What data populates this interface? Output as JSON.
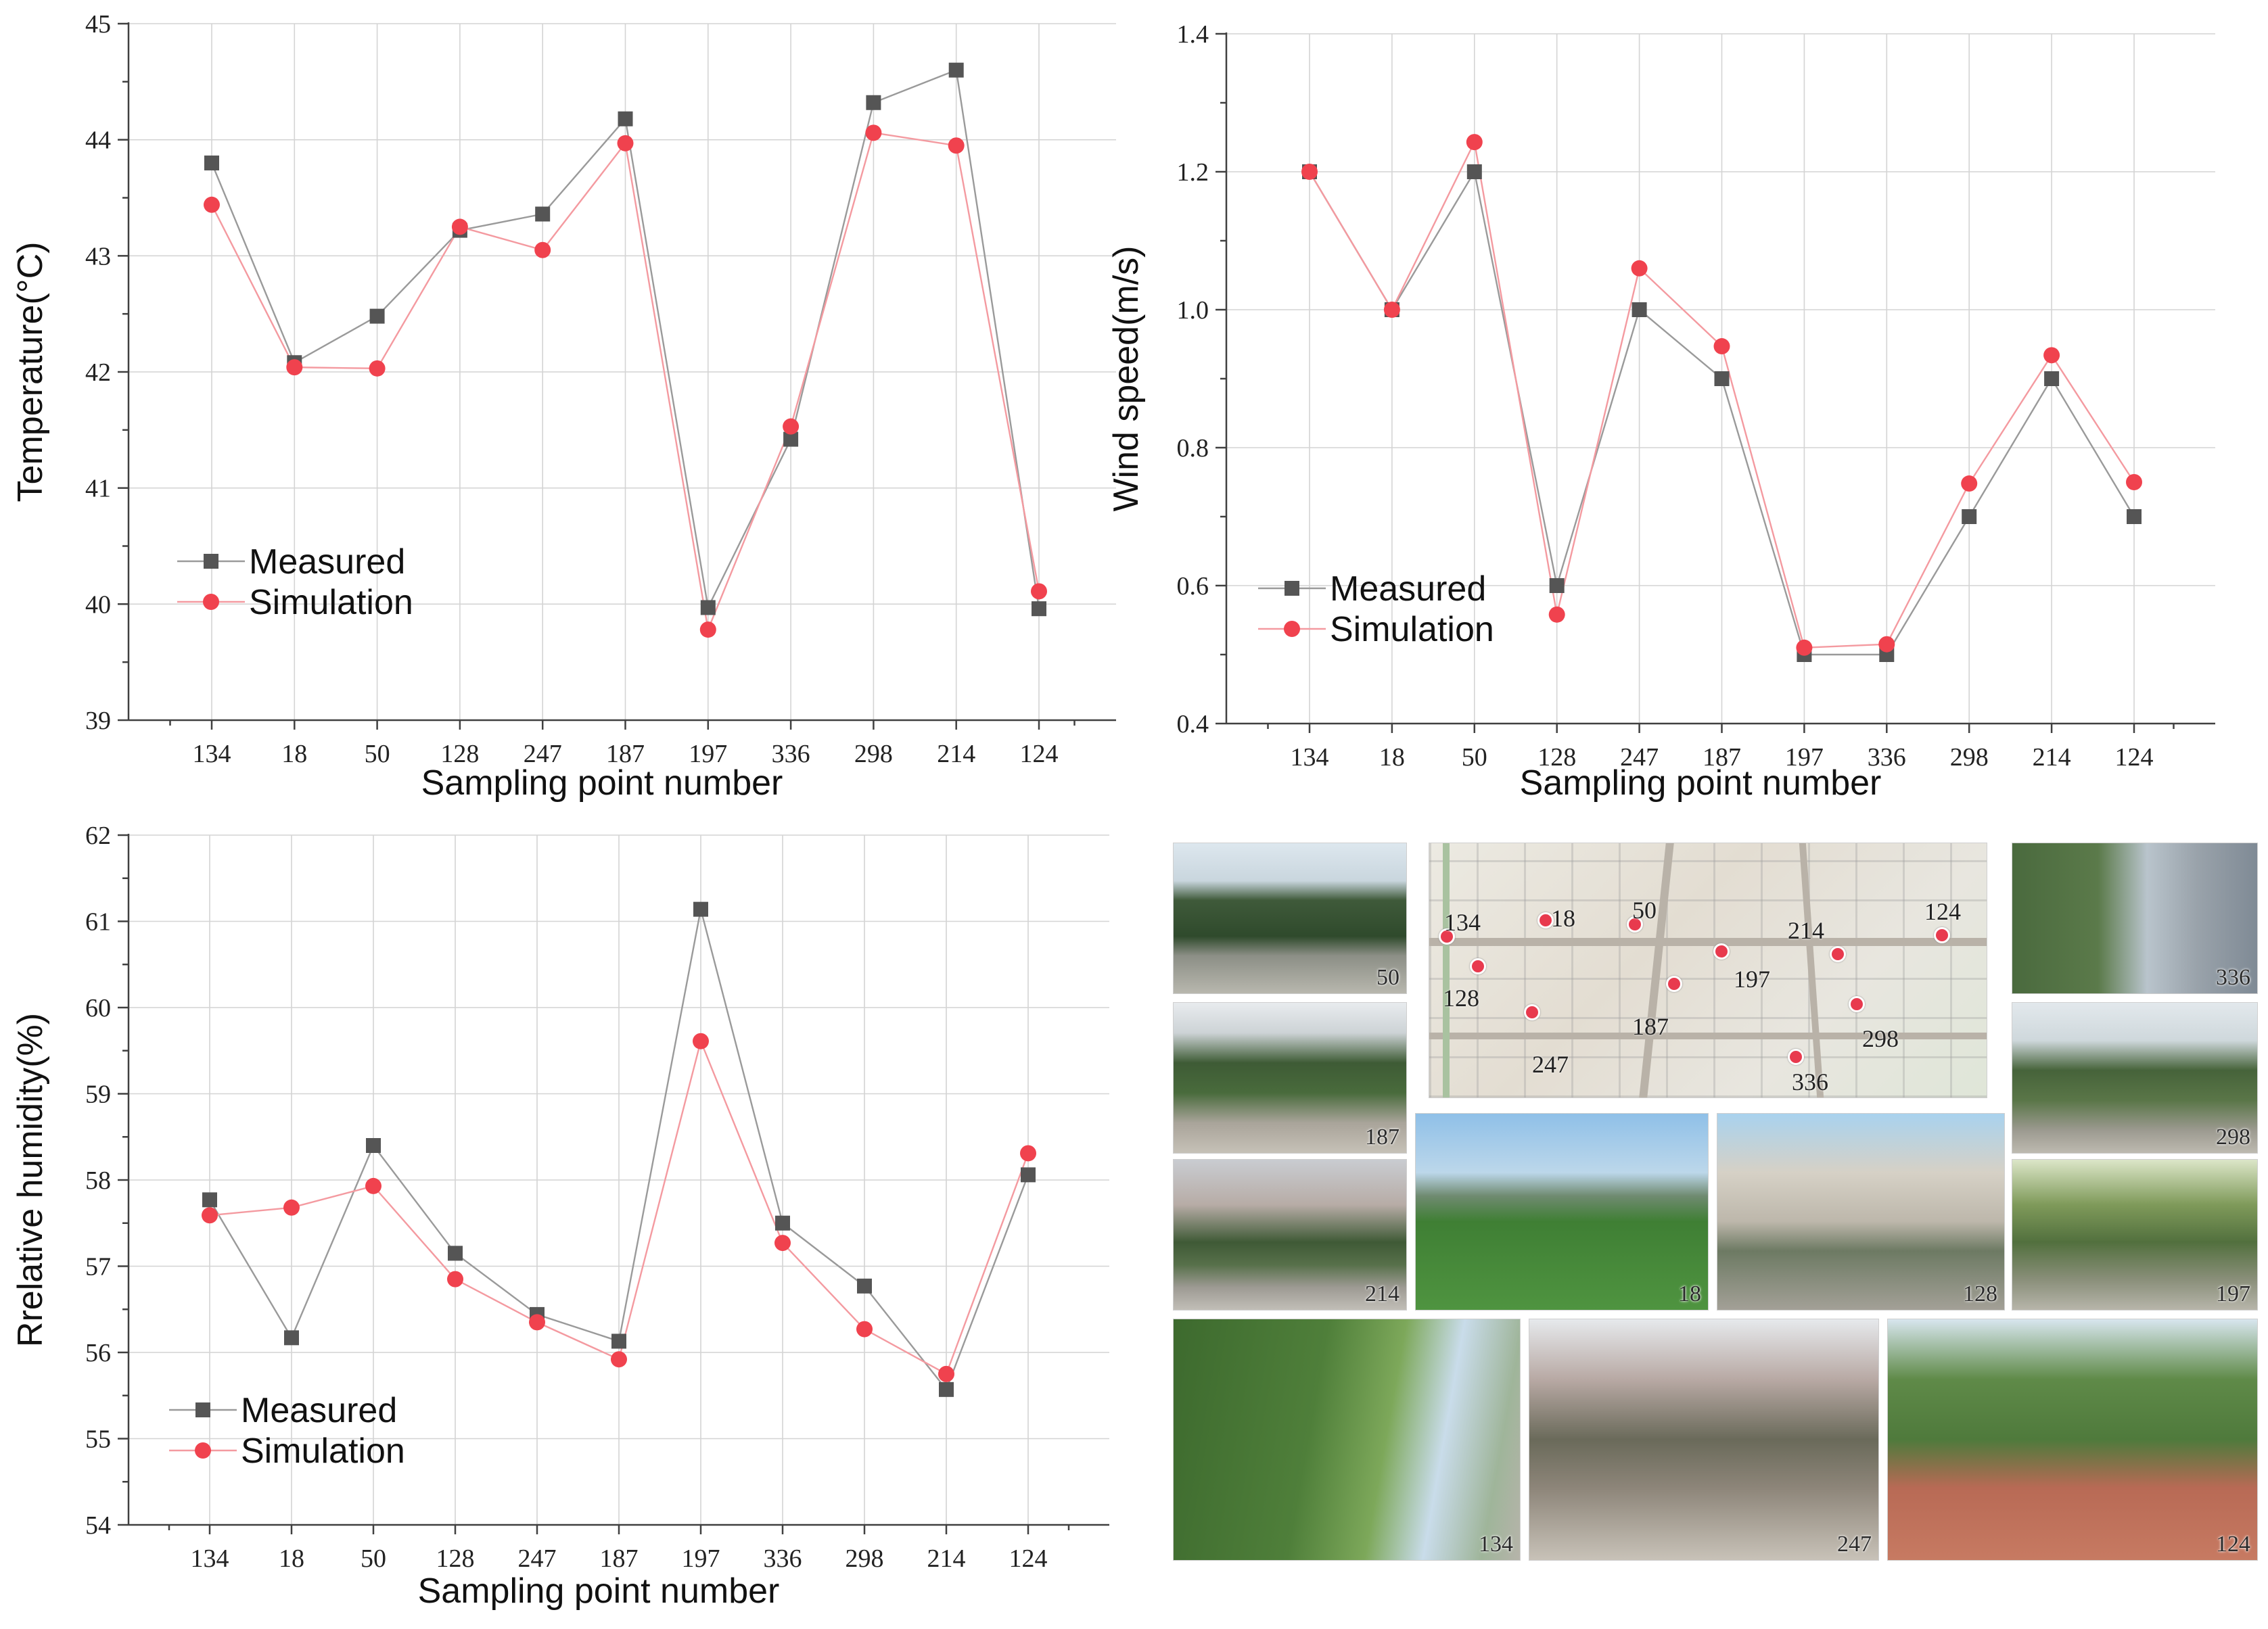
{
  "colors": {
    "measured": "#555555",
    "simulation": "#f0424e",
    "measured_line": "#9a9a9a",
    "simulation_line": "#f49aa0"
  },
  "chart_data": [
    {
      "id": "temperature",
      "type": "line",
      "categories": [
        "134",
        "18",
        "50",
        "128",
        "247",
        "187",
        "197",
        "336",
        "298",
        "214",
        "124"
      ],
      "series": [
        {
          "name": "Measured",
          "values": [
            43.8,
            42.08,
            42.48,
            43.22,
            43.36,
            44.18,
            39.97,
            41.42,
            44.32,
            44.6,
            39.96
          ]
        },
        {
          "name": "Simulation",
          "values": [
            43.44,
            42.04,
            42.03,
            43.25,
            43.05,
            43.97,
            39.78,
            41.53,
            44.06,
            43.95,
            40.11
          ]
        }
      ],
      "xlabel": "Sampling point number",
      "ylabel": "Temperature(°C)",
      "ylim": [
        39,
        45
      ],
      "yticks": [
        "39",
        "40",
        "41",
        "42",
        "43",
        "44",
        "45"
      ],
      "legend_position": "bottom-left"
    },
    {
      "id": "wind",
      "type": "line",
      "categories": [
        "134",
        "18",
        "50",
        "128",
        "247",
        "187",
        "197",
        "336",
        "298",
        "214",
        "124"
      ],
      "series": [
        {
          "name": "Measured",
          "values": [
            1.2,
            1.0,
            1.2,
            0.6,
            1.0,
            0.9,
            0.5,
            0.5,
            0.7,
            0.9,
            0.7
          ]
        },
        {
          "name": "Simulation",
          "values": [
            1.2,
            1.0,
            1.243,
            0.558,
            1.06,
            0.947,
            0.51,
            0.515,
            0.748,
            0.934,
            0.75
          ]
        }
      ],
      "xlabel": "Sampling point number",
      "ylabel": "Wind speed(m/s)",
      "ylim": [
        0.4,
        1.4
      ],
      "yticks": [
        "0.4",
        "0.6",
        "0.8",
        "1.0",
        "1.2",
        "1.4"
      ],
      "legend_position": "bottom-left"
    },
    {
      "id": "humidity",
      "type": "line",
      "categories": [
        "134",
        "18",
        "50",
        "128",
        "247",
        "187",
        "197",
        "336",
        "298",
        "214",
        "124"
      ],
      "series": [
        {
          "name": "Measured",
          "values": [
            57.77,
            56.17,
            58.4,
            57.15,
            56.44,
            56.13,
            61.14,
            57.5,
            56.77,
            55.57,
            58.06
          ]
        },
        {
          "name": "Simulation",
          "values": [
            57.59,
            57.68,
            57.93,
            56.85,
            56.35,
            55.92,
            59.61,
            57.27,
            56.27,
            55.75,
            58.31
          ]
        }
      ],
      "xlabel": "Sampling point number",
      "ylabel": "Rrelative humidity(%)",
      "ylim": [
        54,
        62
      ],
      "yticks": [
        "54",
        "55",
        "56",
        "57",
        "58",
        "59",
        "60",
        "61",
        "62"
      ],
      "legend_position": "bottom-left"
    }
  ],
  "photos": {
    "map_labels": [
      "134",
      "18",
      "50",
      "214",
      "124",
      "197",
      "128",
      "187",
      "298",
      "247",
      "336"
    ],
    "tiles": [
      "50",
      "336",
      "187",
      "298",
      "214",
      "18",
      "128",
      "197",
      "134",
      "247",
      "124"
    ]
  }
}
